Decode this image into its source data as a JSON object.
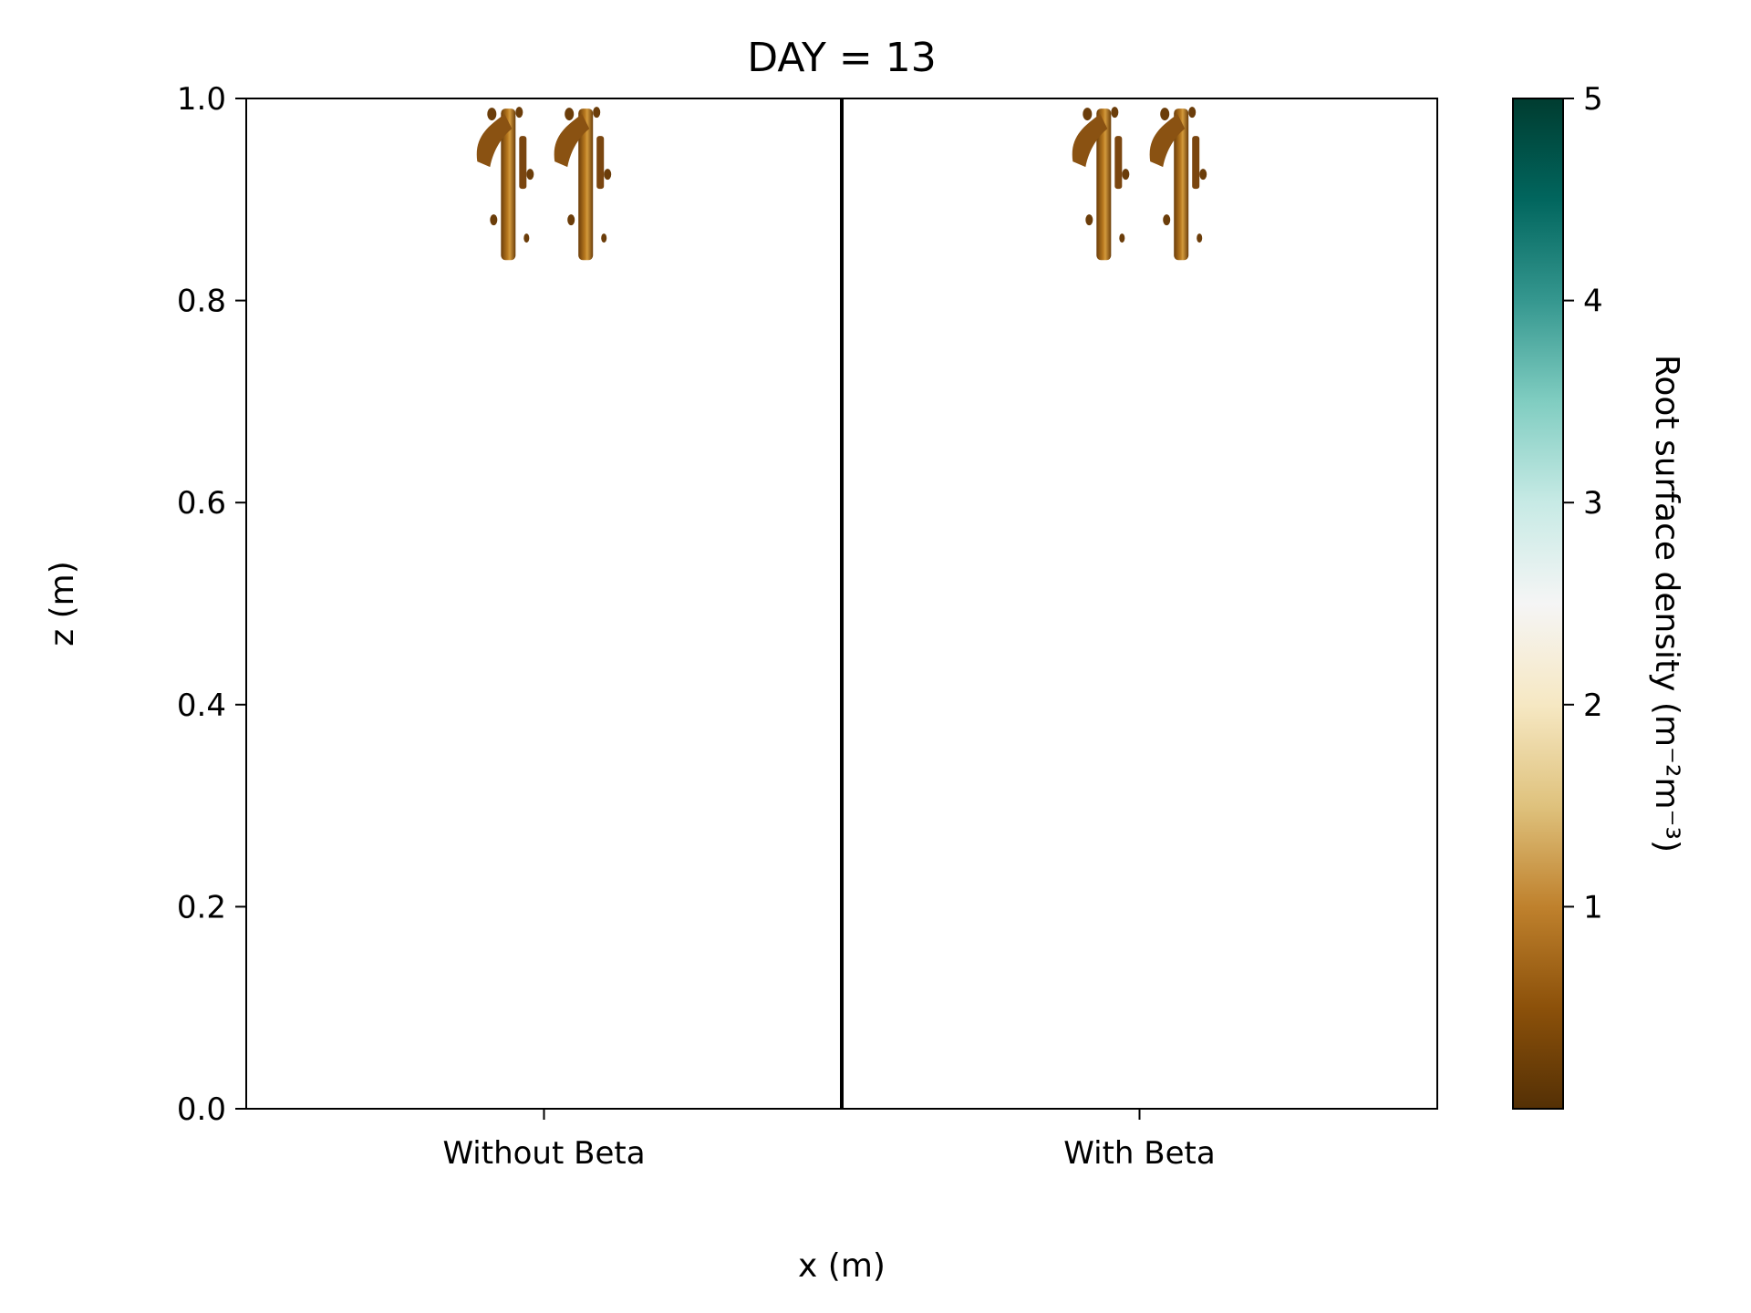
{
  "chart_data": {
    "type": "heatmap",
    "title": "DAY = 13",
    "xlabel": "x (m)",
    "ylabel": "z (m)",
    "ylim": [
      0.0,
      1.0
    ],
    "yticks": [
      {
        "value": 0.0,
        "label": "0.0"
      },
      {
        "value": 0.2,
        "label": "0.2"
      },
      {
        "value": 0.4,
        "label": "0.4"
      },
      {
        "value": 0.6,
        "label": "0.6"
      },
      {
        "value": 0.8,
        "label": "0.8"
      },
      {
        "value": 1.0,
        "label": "1.0"
      }
    ],
    "panels": [
      {
        "name": "Without Beta",
        "label": "Without Beta"
      },
      {
        "name": "With Beta",
        "label": "With Beta"
      }
    ],
    "colorbar": {
      "label": "Root surface density (m⁻²m⁻³)",
      "range": [
        0,
        5
      ],
      "ticks": [
        {
          "value": 1,
          "label": "1"
        },
        {
          "value": 2,
          "label": "2"
        },
        {
          "value": 3,
          "label": "3"
        },
        {
          "value": 4,
          "label": "4"
        },
        {
          "value": 5,
          "label": "5"
        }
      ],
      "colormap": [
        "#543005",
        "#8c510a",
        "#bf812d",
        "#dfc27d",
        "#f6e8c3",
        "#f5f5f5",
        "#c7eae5",
        "#80cdc1",
        "#35978f",
        "#01665e",
        "#003c30"
      ]
    },
    "root_clusters": [
      {
        "panel": "Without Beta",
        "x_center": 0.44,
        "z_top": 0.99,
        "z_bottom": 0.84,
        "peak_density": 1.0
      },
      {
        "panel": "Without Beta",
        "x_center": 0.57,
        "z_top": 0.99,
        "z_bottom": 0.84,
        "peak_density": 1.0
      },
      {
        "panel": "With Beta",
        "x_center": 0.44,
        "z_top": 0.99,
        "z_bottom": 0.84,
        "peak_density": 1.0
      },
      {
        "panel": "With Beta",
        "x_center": 0.57,
        "z_top": 0.99,
        "z_bottom": 0.84,
        "peak_density": 1.0
      }
    ]
  }
}
